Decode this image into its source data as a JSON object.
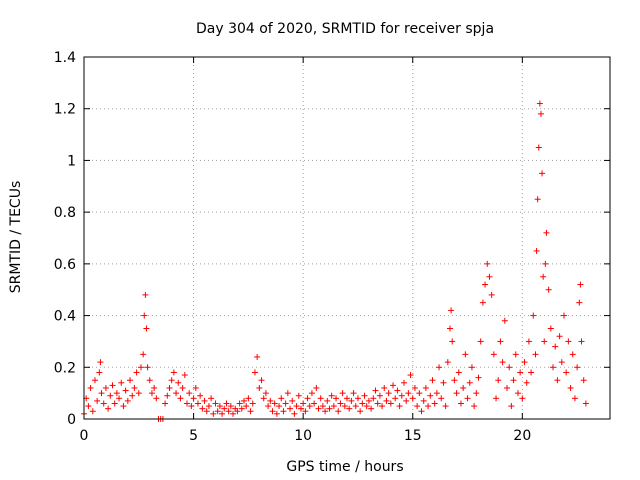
{
  "chart_data": {
    "type": "scatter",
    "title": "Day 304 of 2020, SRMTID for receiver spja",
    "xlabel": "GPS time / hours",
    "ylabel": "SRMTID / TECUs",
    "xlim": [
      0,
      24
    ],
    "ylim": [
      0,
      1.4
    ],
    "xticks": [
      0,
      5,
      10,
      15,
      20
    ],
    "xtick_labels": [
      "0",
      "5",
      "10",
      "15",
      "20"
    ],
    "yticks": [
      0,
      0.2,
      0.4,
      0.6,
      0.8,
      1.0,
      1.2,
      1.4
    ],
    "ytick_labels": [
      "0",
      "0.2",
      "0.4",
      "0.6",
      "0.8",
      "1",
      "1.2",
      "1.4"
    ],
    "grid": true,
    "marker": "+",
    "color": "#ff0000",
    "series": [
      {
        "name": "SRMTID",
        "points": [
          [
            0.0,
            0.02
          ],
          [
            0.1,
            0.08
          ],
          [
            0.2,
            0.05
          ],
          [
            0.3,
            0.12
          ],
          [
            0.4,
            0.03
          ],
          [
            0.5,
            0.15
          ],
          [
            0.6,
            0.07
          ],
          [
            0.7,
            0.18
          ],
          [
            0.75,
            0.22
          ],
          [
            0.8,
            0.1
          ],
          [
            0.9,
            0.06
          ],
          [
            1.0,
            0.12
          ],
          [
            1.1,
            0.04
          ],
          [
            1.2,
            0.09
          ],
          [
            1.3,
            0.13
          ],
          [
            1.4,
            0.06
          ],
          [
            1.5,
            0.1
          ],
          [
            1.6,
            0.08
          ],
          [
            1.7,
            0.14
          ],
          [
            1.8,
            0.05
          ],
          [
            1.9,
            0.11
          ],
          [
            2.0,
            0.07
          ],
          [
            2.1,
            0.15
          ],
          [
            2.2,
            0.09
          ],
          [
            2.3,
            0.12
          ],
          [
            2.4,
            0.18
          ],
          [
            2.5,
            0.1
          ],
          [
            2.6,
            0.2
          ],
          [
            2.7,
            0.25
          ],
          [
            2.75,
            0.4
          ],
          [
            2.8,
            0.48
          ],
          [
            2.85,
            0.35
          ],
          [
            2.9,
            0.2
          ],
          [
            3.0,
            0.15
          ],
          [
            3.1,
            0.1
          ],
          [
            3.2,
            0.12
          ],
          [
            3.3,
            0.08
          ],
          [
            3.4,
            0.0
          ],
          [
            3.5,
            0.0
          ],
          [
            3.6,
            0.0
          ],
          [
            3.7,
            0.06
          ],
          [
            3.8,
            0.09
          ],
          [
            3.9,
            0.12
          ],
          [
            4.0,
            0.15
          ],
          [
            4.1,
            0.18
          ],
          [
            4.2,
            0.1
          ],
          [
            4.3,
            0.14
          ],
          [
            4.4,
            0.08
          ],
          [
            4.5,
            0.12
          ],
          [
            4.6,
            0.17
          ],
          [
            4.7,
            0.06
          ],
          [
            4.8,
            0.1
          ],
          [
            4.9,
            0.05
          ],
          [
            5.0,
            0.08
          ],
          [
            5.1,
            0.12
          ],
          [
            5.2,
            0.06
          ],
          [
            5.3,
            0.09
          ],
          [
            5.4,
            0.04
          ],
          [
            5.5,
            0.07
          ],
          [
            5.6,
            0.03
          ],
          [
            5.7,
            0.05
          ],
          [
            5.8,
            0.08
          ],
          [
            5.9,
            0.02
          ],
          [
            6.0,
            0.06
          ],
          [
            6.1,
            0.03
          ],
          [
            6.2,
            0.05
          ],
          [
            6.3,
            0.02
          ],
          [
            6.4,
            0.04
          ],
          [
            6.5,
            0.06
          ],
          [
            6.6,
            0.03
          ],
          [
            6.7,
            0.05
          ],
          [
            6.8,
            0.02
          ],
          [
            6.9,
            0.04
          ],
          [
            7.0,
            0.03
          ],
          [
            7.1,
            0.06
          ],
          [
            7.2,
            0.04
          ],
          [
            7.3,
            0.07
          ],
          [
            7.4,
            0.05
          ],
          [
            7.5,
            0.08
          ],
          [
            7.6,
            0.03
          ],
          [
            7.7,
            0.06
          ],
          [
            7.8,
            0.18
          ],
          [
            7.9,
            0.24
          ],
          [
            8.0,
            0.12
          ],
          [
            8.1,
            0.15
          ],
          [
            8.2,
            0.08
          ],
          [
            8.3,
            0.1
          ],
          [
            8.4,
            0.05
          ],
          [
            8.5,
            0.07
          ],
          [
            8.6,
            0.03
          ],
          [
            8.7,
            0.06
          ],
          [
            8.8,
            0.02
          ],
          [
            8.9,
            0.05
          ],
          [
            9.0,
            0.08
          ],
          [
            9.1,
            0.03
          ],
          [
            9.2,
            0.06
          ],
          [
            9.3,
            0.1
          ],
          [
            9.4,
            0.04
          ],
          [
            9.5,
            0.07
          ],
          [
            9.6,
            0.02
          ],
          [
            9.7,
            0.05
          ],
          [
            9.8,
            0.09
          ],
          [
            9.9,
            0.04
          ],
          [
            10.0,
            0.06
          ],
          [
            10.1,
            0.03
          ],
          [
            10.2,
            0.08
          ],
          [
            10.3,
            0.05
          ],
          [
            10.4,
            0.1
          ],
          [
            10.5,
            0.06
          ],
          [
            10.6,
            0.12
          ],
          [
            10.7,
            0.04
          ],
          [
            10.8,
            0.08
          ],
          [
            10.9,
            0.05
          ],
          [
            11.0,
            0.03
          ],
          [
            11.1,
            0.07
          ],
          [
            11.2,
            0.04
          ],
          [
            11.3,
            0.09
          ],
          [
            11.4,
            0.05
          ],
          [
            11.5,
            0.08
          ],
          [
            11.6,
            0.03
          ],
          [
            11.7,
            0.06
          ],
          [
            11.8,
            0.1
          ],
          [
            11.9,
            0.05
          ],
          [
            12.0,
            0.08
          ],
          [
            12.1,
            0.04
          ],
          [
            12.2,
            0.07
          ],
          [
            12.3,
            0.1
          ],
          [
            12.4,
            0.05
          ],
          [
            12.5,
            0.08
          ],
          [
            12.6,
            0.03
          ],
          [
            12.7,
            0.06
          ],
          [
            12.8,
            0.09
          ],
          [
            12.9,
            0.05
          ],
          [
            13.0,
            0.07
          ],
          [
            13.1,
            0.04
          ],
          [
            13.2,
            0.08
          ],
          [
            13.3,
            0.11
          ],
          [
            13.4,
            0.06
          ],
          [
            13.5,
            0.09
          ],
          [
            13.6,
            0.05
          ],
          [
            13.7,
            0.12
          ],
          [
            13.8,
            0.07
          ],
          [
            13.9,
            0.1
          ],
          [
            14.0,
            0.06
          ],
          [
            14.1,
            0.13
          ],
          [
            14.2,
            0.08
          ],
          [
            14.3,
            0.11
          ],
          [
            14.4,
            0.05
          ],
          [
            14.5,
            0.09
          ],
          [
            14.6,
            0.14
          ],
          [
            14.7,
            0.07
          ],
          [
            14.8,
            0.1
          ],
          [
            14.9,
            0.17
          ],
          [
            15.0,
            0.08
          ],
          [
            15.1,
            0.12
          ],
          [
            15.2,
            0.05
          ],
          [
            15.3,
            0.1
          ],
          [
            15.4,
            0.03
          ],
          [
            15.5,
            0.07
          ],
          [
            15.6,
            0.12
          ],
          [
            15.7,
            0.05
          ],
          [
            15.8,
            0.09
          ],
          [
            15.9,
            0.15
          ],
          [
            16.0,
            0.06
          ],
          [
            16.1,
            0.1
          ],
          [
            16.2,
            0.2
          ],
          [
            16.3,
            0.08
          ],
          [
            16.4,
            0.14
          ],
          [
            16.5,
            0.05
          ],
          [
            16.6,
            0.22
          ],
          [
            16.7,
            0.35
          ],
          [
            16.75,
            0.42
          ],
          [
            16.8,
            0.3
          ],
          [
            16.9,
            0.15
          ],
          [
            17.0,
            0.1
          ],
          [
            17.1,
            0.18
          ],
          [
            17.2,
            0.06
          ],
          [
            17.3,
            0.12
          ],
          [
            17.4,
            0.25
          ],
          [
            17.5,
            0.08
          ],
          [
            17.6,
            0.14
          ],
          [
            17.7,
            0.2
          ],
          [
            17.8,
            0.05
          ],
          [
            17.9,
            0.1
          ],
          [
            18.0,
            0.16
          ],
          [
            18.1,
            0.3
          ],
          [
            18.2,
            0.45
          ],
          [
            18.3,
            0.52
          ],
          [
            18.4,
            0.6
          ],
          [
            18.5,
            0.55
          ],
          [
            18.6,
            0.48
          ],
          [
            18.7,
            0.25
          ],
          [
            18.8,
            0.08
          ],
          [
            18.9,
            0.15
          ],
          [
            19.0,
            0.3
          ],
          [
            19.1,
            0.22
          ],
          [
            19.2,
            0.38
          ],
          [
            19.3,
            0.12
          ],
          [
            19.4,
            0.2
          ],
          [
            19.5,
            0.05
          ],
          [
            19.6,
            0.15
          ],
          [
            19.7,
            0.25
          ],
          [
            19.8,
            0.1
          ],
          [
            19.9,
            0.18
          ],
          [
            20.0,
            0.08
          ],
          [
            20.1,
            0.22
          ],
          [
            20.2,
            0.14
          ],
          [
            20.3,
            0.3
          ],
          [
            20.4,
            0.18
          ],
          [
            20.5,
            0.4
          ],
          [
            20.6,
            0.25
          ],
          [
            20.65,
            0.65
          ],
          [
            20.7,
            0.85
          ],
          [
            20.75,
            1.05
          ],
          [
            20.8,
            1.22
          ],
          [
            20.85,
            1.18
          ],
          [
            20.9,
            0.95
          ],
          [
            20.95,
            0.55
          ],
          [
            21.0,
            0.3
          ],
          [
            21.05,
            0.6
          ],
          [
            21.1,
            0.72
          ],
          [
            21.2,
            0.5
          ],
          [
            21.3,
            0.35
          ],
          [
            21.4,
            0.2
          ],
          [
            21.5,
            0.28
          ],
          [
            21.6,
            0.15
          ],
          [
            21.7,
            0.32
          ],
          [
            21.8,
            0.22
          ],
          [
            21.9,
            0.4
          ],
          [
            22.0,
            0.18
          ],
          [
            22.1,
            0.3
          ],
          [
            22.2,
            0.12
          ],
          [
            22.3,
            0.25
          ],
          [
            22.4,
            0.08
          ],
          [
            22.5,
            0.2
          ],
          [
            22.6,
            0.45
          ],
          [
            22.65,
            0.52
          ],
          [
            22.7,
            0.3
          ],
          [
            22.8,
            0.15
          ],
          [
            22.9,
            0.06
          ]
        ]
      }
    ]
  }
}
